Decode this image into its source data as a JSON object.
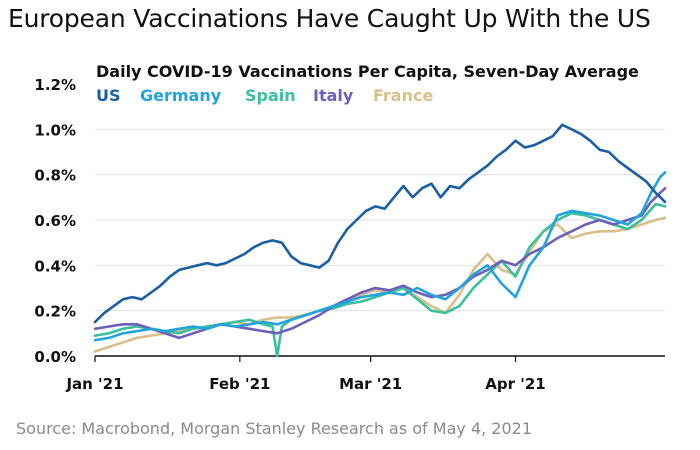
{
  "headline": "European Vaccinations Have Caught Up With the US",
  "source": "Source: Macrobond, Morgan Stanley Research as of May 4, 2021",
  "chart_data": {
    "type": "line",
    "title": "Daily COVID-19 Vaccinations Per Capita, Seven-Day Average",
    "xlabel": "",
    "ylabel": "",
    "ylim": [
      0,
      1.2
    ],
    "yticks": [
      0.0,
      0.2,
      0.4,
      0.6,
      0.8,
      1.0,
      1.2
    ],
    "ytick_labels": [
      "0.0%",
      "0.2%",
      "0.4%",
      "0.6%",
      "0.8%",
      "1.0%",
      "1.2%"
    ],
    "xlim": [
      0,
      122
    ],
    "xticks": [
      0,
      31,
      59,
      90
    ],
    "xtick_labels": [
      "Jan '21",
      "Feb '21",
      "Mar '21",
      "Apr '21"
    ],
    "x_unit": "days since Jan 1, 2021",
    "grid": "horizontal",
    "legend": "top-left",
    "series": [
      {
        "name": "US",
        "color": "#1a5fa0",
        "x": [
          0,
          2,
          4,
          6,
          8,
          10,
          12,
          14,
          16,
          18,
          20,
          22,
          24,
          26,
          28,
          30,
          32,
          34,
          36,
          38,
          40,
          42,
          44,
          46,
          48,
          50,
          52,
          54,
          56,
          58,
          60,
          62,
          64,
          66,
          68,
          70,
          72,
          74,
          76,
          78,
          80,
          82,
          84,
          86,
          88,
          90,
          92,
          94,
          96,
          98,
          100,
          102,
          104,
          106,
          108,
          110,
          112,
          114,
          116,
          118,
          120,
          122
        ],
        "values": [
          0.15,
          0.19,
          0.22,
          0.25,
          0.26,
          0.25,
          0.28,
          0.31,
          0.35,
          0.38,
          0.39,
          0.4,
          0.41,
          0.4,
          0.41,
          0.43,
          0.45,
          0.48,
          0.5,
          0.51,
          0.5,
          0.44,
          0.41,
          0.4,
          0.39,
          0.42,
          0.5,
          0.56,
          0.6,
          0.64,
          0.66,
          0.65,
          0.7,
          0.75,
          0.7,
          0.74,
          0.76,
          0.7,
          0.75,
          0.74,
          0.78,
          0.81,
          0.84,
          0.88,
          0.91,
          0.95,
          0.92,
          0.93,
          0.95,
          0.97,
          1.02,
          1.0,
          0.98,
          0.95,
          0.91,
          0.9,
          0.86,
          0.83,
          0.8,
          0.77,
          0.72,
          0.68
        ]
      },
      {
        "name": "Germany",
        "color": "#22a3dc",
        "x": [
          0,
          3,
          6,
          9,
          12,
          15,
          18,
          21,
          24,
          27,
          30,
          33,
          36,
          39,
          42,
          45,
          48,
          51,
          54,
          57,
          60,
          63,
          66,
          69,
          72,
          75,
          78,
          81,
          84,
          87,
          90,
          93,
          96,
          99,
          102,
          105,
          108,
          111,
          114,
          117,
          119,
          121,
          122
        ],
        "values": [
          0.07,
          0.08,
          0.1,
          0.11,
          0.12,
          0.11,
          0.12,
          0.13,
          0.12,
          0.14,
          0.13,
          0.14,
          0.15,
          0.14,
          0.16,
          0.18,
          0.2,
          0.22,
          0.24,
          0.26,
          0.27,
          0.28,
          0.27,
          0.3,
          0.27,
          0.25,
          0.3,
          0.36,
          0.4,
          0.32,
          0.26,
          0.4,
          0.48,
          0.62,
          0.64,
          0.63,
          0.62,
          0.6,
          0.58,
          0.63,
          0.72,
          0.79,
          0.81
        ]
      },
      {
        "name": "Spain",
        "color": "#3bbf9e",
        "x": [
          0,
          3,
          6,
          9,
          12,
          15,
          18,
          21,
          24,
          27,
          30,
          33,
          36,
          38,
          39,
          40,
          42,
          45,
          48,
          51,
          54,
          57,
          60,
          63,
          66,
          69,
          72,
          75,
          78,
          81,
          84,
          87,
          90,
          93,
          96,
          99,
          102,
          105,
          108,
          111,
          114,
          117,
          120,
          122
        ],
        "values": [
          0.09,
          0.1,
          0.12,
          0.13,
          0.12,
          0.11,
          0.1,
          0.12,
          0.13,
          0.14,
          0.15,
          0.16,
          0.14,
          0.13,
          0.0,
          0.13,
          0.16,
          0.18,
          0.2,
          0.21,
          0.23,
          0.24,
          0.26,
          0.28,
          0.3,
          0.25,
          0.2,
          0.19,
          0.22,
          0.3,
          0.36,
          0.42,
          0.35,
          0.48,
          0.55,
          0.6,
          0.63,
          0.62,
          0.6,
          0.58,
          0.56,
          0.6,
          0.67,
          0.66
        ]
      },
      {
        "name": "Italy",
        "color": "#6f5fb8",
        "x": [
          0,
          3,
          6,
          9,
          12,
          15,
          18,
          21,
          24,
          27,
          30,
          33,
          36,
          39,
          42,
          45,
          48,
          51,
          54,
          57,
          60,
          63,
          66,
          69,
          72,
          75,
          78,
          81,
          84,
          87,
          90,
          93,
          96,
          99,
          102,
          105,
          108,
          111,
          114,
          117,
          119,
          121,
          122
        ],
        "values": [
          0.12,
          0.13,
          0.14,
          0.14,
          0.12,
          0.1,
          0.08,
          0.1,
          0.12,
          0.14,
          0.13,
          0.12,
          0.11,
          0.1,
          0.12,
          0.15,
          0.18,
          0.22,
          0.25,
          0.28,
          0.3,
          0.29,
          0.31,
          0.28,
          0.26,
          0.27,
          0.3,
          0.35,
          0.38,
          0.42,
          0.4,
          0.45,
          0.48,
          0.52,
          0.55,
          0.58,
          0.6,
          0.58,
          0.6,
          0.62,
          0.68,
          0.72,
          0.74
        ]
      },
      {
        "name": "France",
        "color": "#d8c08a",
        "x": [
          0,
          3,
          6,
          9,
          12,
          15,
          18,
          21,
          24,
          27,
          30,
          33,
          36,
          39,
          42,
          45,
          48,
          51,
          54,
          57,
          60,
          63,
          66,
          69,
          72,
          75,
          78,
          81,
          84,
          87,
          90,
          93,
          96,
          99,
          102,
          105,
          108,
          111,
          114,
          117,
          120,
          122
        ],
        "values": [
          0.02,
          0.04,
          0.06,
          0.08,
          0.09,
          0.1,
          0.11,
          0.12,
          0.13,
          0.14,
          0.15,
          0.14,
          0.16,
          0.17,
          0.17,
          0.18,
          0.2,
          0.22,
          0.25,
          0.27,
          0.29,
          0.28,
          0.3,
          0.26,
          0.22,
          0.19,
          0.27,
          0.38,
          0.45,
          0.38,
          0.36,
          0.46,
          0.55,
          0.58,
          0.52,
          0.54,
          0.55,
          0.55,
          0.56,
          0.58,
          0.6,
          0.61
        ]
      }
    ]
  }
}
